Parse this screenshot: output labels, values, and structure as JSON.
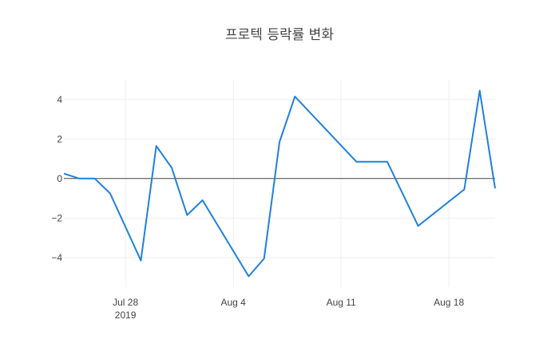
{
  "chart_data": {
    "type": "line",
    "title": "프로텍 등락률 변화",
    "xlabel": "",
    "ylabel": "",
    "x": [
      "2019-07-24",
      "2019-07-25",
      "2019-07-26",
      "2019-07-27",
      "2019-07-29",
      "2019-07-30",
      "2019-07-31",
      "2019-08-01",
      "2019-08-02",
      "2019-08-05",
      "2019-08-06",
      "2019-08-07",
      "2019-08-08",
      "2019-08-12",
      "2019-08-14",
      "2019-08-16",
      "2019-08-19",
      "2019-08-20",
      "2019-08-21"
    ],
    "values": [
      0.25,
      0.0,
      0.0,
      -0.75,
      -4.15,
      1.65,
      0.55,
      -1.85,
      -1.1,
      -4.95,
      -4.05,
      1.85,
      4.15,
      0.85,
      0.85,
      -2.4,
      -0.55,
      4.45,
      -0.5
    ],
    "xlim": [
      "2019-07-24",
      "2019-08-21"
    ],
    "ylim": [
      -5.5,
      5
    ],
    "y_ticks": [
      4,
      2,
      0,
      -2,
      -4
    ],
    "y_tick_labels": [
      "4",
      "2",
      "0",
      "−2",
      "−4"
    ],
    "x_ticks": [
      "2019-07-28",
      "2019-08-04",
      "2019-08-11",
      "2019-08-18"
    ],
    "x_tick_labels": [
      "Jul 28",
      "Aug 4",
      "Aug 11",
      "Aug 18"
    ],
    "x_tick_sublabel": "2019",
    "grid": true,
    "zero_line": true,
    "line_color": "#1f80e0"
  }
}
